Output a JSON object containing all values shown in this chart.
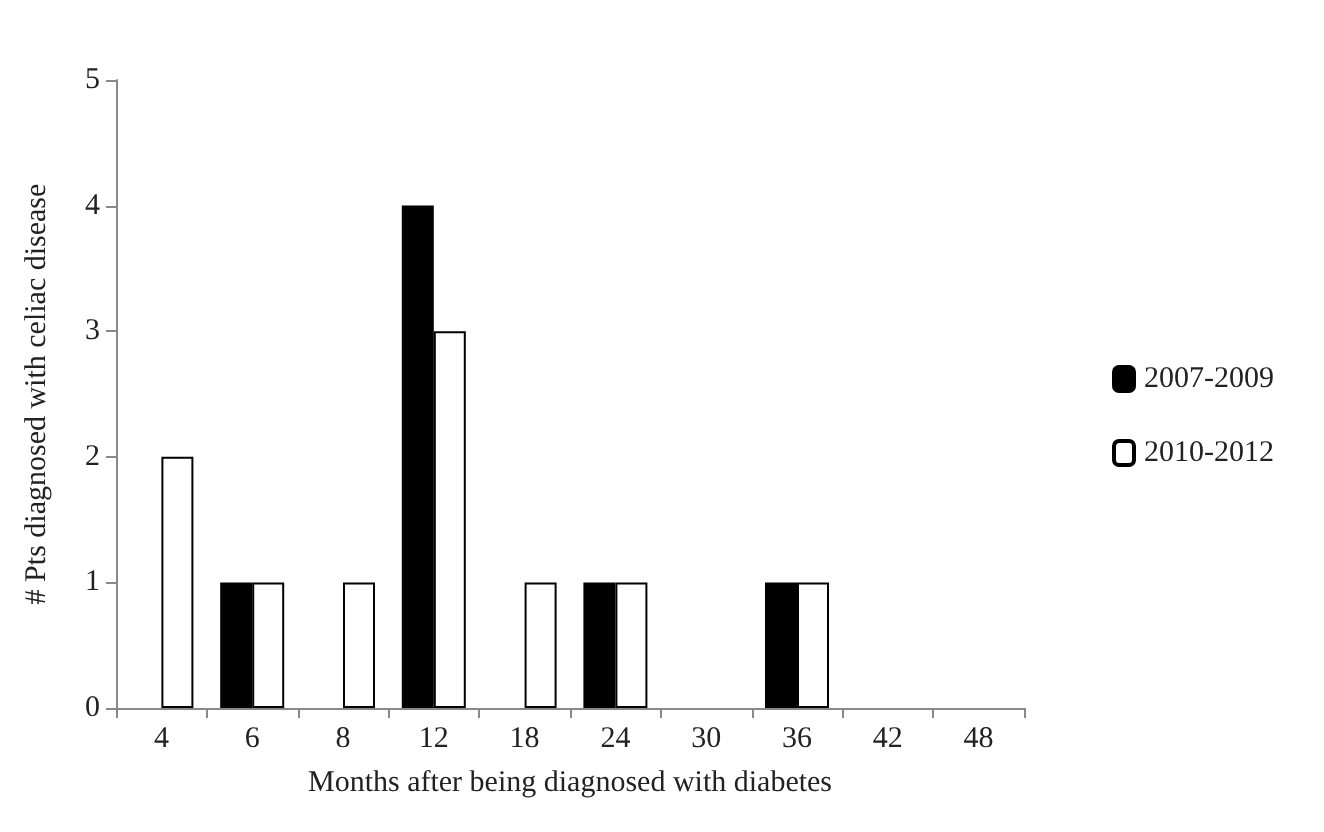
{
  "chart_data": {
    "type": "bar",
    "xlabel": "Months after being diagnosed with diabetes",
    "ylabel": "# Pts diagnosed with celiac disease",
    "categories": [
      "4",
      "6",
      "8",
      "12",
      "18",
      "24",
      "30",
      "36",
      "42",
      "48"
    ],
    "series": [
      {
        "name": "2007-2009",
        "color": "#000000",
        "values": [
          0,
          1,
          0,
          4,
          0,
          1,
          0,
          1,
          0,
          0
        ]
      },
      {
        "name": "2010-2012",
        "color": "#ffffff",
        "values": [
          2,
          1,
          1,
          3,
          1,
          1,
          0,
          1,
          0,
          0
        ]
      }
    ],
    "ylim": [
      0,
      5
    ],
    "yticks": [
      0,
      1,
      2,
      3,
      4,
      5
    ],
    "grid": false,
    "legend": "right"
  }
}
